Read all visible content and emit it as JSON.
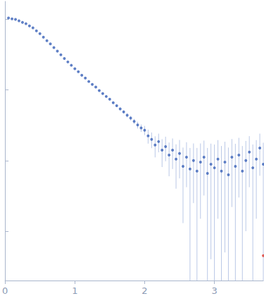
{
  "chart_data": {
    "type": "scatter",
    "log": "y",
    "grid": false,
    "tick_labels": "x",
    "xlim": [
      0,
      3.7
    ],
    "xticks": [
      0,
      1,
      2,
      3
    ],
    "ylim": [
      0.0002,
      1.8
    ],
    "yticks": [
      0.001,
      0.01,
      0.1,
      1
    ],
    "series": [
      {
        "color": "#3a62b8",
        "marker": "circle",
        "x": [
          0.05,
          0.1,
          0.15,
          0.2,
          0.25,
          0.3,
          0.35,
          0.4,
          0.45,
          0.5,
          0.55,
          0.6,
          0.65,
          0.7,
          0.75,
          0.8,
          0.85,
          0.9,
          0.95,
          1.0,
          1.05,
          1.1,
          1.15,
          1.2,
          1.25,
          1.3,
          1.35,
          1.4,
          1.45,
          1.5,
          1.55,
          1.6,
          1.65,
          1.7,
          1.75,
          1.8,
          1.85,
          1.9,
          1.95,
          2.0,
          2.05,
          2.1,
          2.15,
          2.2,
          2.25,
          2.3,
          2.35,
          2.4,
          2.45,
          2.5,
          2.55,
          2.6,
          2.65,
          2.7,
          2.75,
          2.8,
          2.85,
          2.9,
          2.95,
          3.0,
          3.05,
          3.1,
          3.15,
          3.2,
          3.25,
          3.3,
          3.35,
          3.4,
          3.45,
          3.5,
          3.55,
          3.6,
          3.65,
          3.7
        ],
        "values": [
          1.05,
          1.02,
          1.0,
          0.955,
          0.91,
          0.87,
          0.81,
          0.76,
          0.69,
          0.63,
          0.56,
          0.5,
          0.45,
          0.4,
          0.355,
          0.316,
          0.28,
          0.25,
          0.224,
          0.2,
          0.182,
          0.162,
          0.148,
          0.132,
          0.12,
          0.11,
          0.098,
          0.089,
          0.081,
          0.074,
          0.066,
          0.06,
          0.054,
          0.049,
          0.044,
          0.04,
          0.036,
          0.032,
          0.029,
          0.027,
          0.0224,
          0.02,
          0.0166,
          0.0186,
          0.0141,
          0.0158,
          0.012,
          0.0141,
          0.0105,
          0.0126,
          0.0083,
          0.0112,
          0.0076,
          0.01,
          0.0071,
          0.0095,
          0.0112,
          0.0066,
          0.0089,
          0.0079,
          0.0105,
          0.0071,
          0.0095,
          0.0063,
          0.0112,
          0.0083,
          0.012,
          0.0071,
          0.01,
          0.0132,
          0.0079,
          0.0105,
          0.0151,
          0.0089
        ],
        "errors": [
          0.002,
          0.002,
          0.002,
          0.002,
          0.002,
          0.002,
          0.002,
          0.002,
          0.002,
          0.002,
          0.002,
          0.002,
          0.002,
          0.002,
          0.002,
          0.002,
          0.002,
          0.002,
          0.002,
          0.002,
          0.002,
          0.002,
          0.002,
          0.002,
          0.002,
          0.002,
          0.002,
          0.002,
          0.002,
          0.002,
          0.002,
          0.002,
          0.0025,
          0.0025,
          0.003,
          0.003,
          0.003,
          0.0035,
          0.0035,
          0.004,
          0.005,
          0.005,
          0.0055,
          0.0055,
          0.006,
          0.006,
          0.006,
          0.0065,
          0.0065,
          0.007,
          0.007,
          0.007,
          0.0075,
          0.0075,
          0.008,
          0.008,
          0.008,
          0.0085,
          0.0085,
          0.009,
          0.009,
          0.009,
          0.009,
          0.009,
          0.009,
          0.009,
          0.009,
          0.009,
          0.009,
          0.009,
          0.009,
          0.009,
          0.009,
          0.009
        ]
      },
      {
        "color": "#e03c31",
        "marker": "circle",
        "x": [
          3.7
        ],
        "values": [
          0.00045
        ]
      }
    ]
  }
}
